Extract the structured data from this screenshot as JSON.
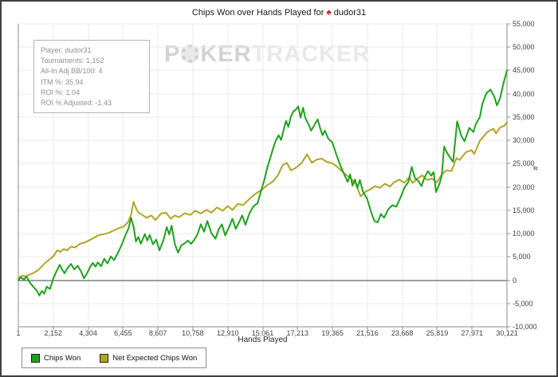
{
  "title": {
    "prefix": "Chips Won over Hands Played for",
    "player": "dudor31"
  },
  "watermark": {
    "part1": "P",
    "part2": "KER",
    "part3": "TRACKER"
  },
  "stats_box": {
    "lines": [
      "Player: dudor31",
      "Tournaments: 1,152",
      "All-In Adj BB/100: 4",
      "ITM %: 35.94",
      "ROI %: 1.04",
      "ROI % Adjusted: -1.43"
    ]
  },
  "axes": {
    "x_label": "Hands Played",
    "y_unit_label": "#"
  },
  "chart_data": {
    "type": "line",
    "title": "Chips Won over Hands Played for dudor31",
    "xlabel": "Hands Played",
    "ylabel": "#",
    "xlim": [
      1,
      30121
    ],
    "ylim": [
      -10000,
      55000
    ],
    "grid": true,
    "legend_position": "bottom-left",
    "x_ticks": [
      1,
      2152,
      4304,
      6455,
      8607,
      10758,
      12910,
      15061,
      17213,
      19365,
      21516,
      23668,
      25819,
      27971,
      30121
    ],
    "y_ticks": [
      -10000,
      -5000,
      0,
      5000,
      10000,
      15000,
      20000,
      25000,
      30000,
      35000,
      40000,
      45000,
      50000,
      55000
    ],
    "colors": {
      "grid": "#ebebeb",
      "axis": "#8c8c8c",
      "zero_line": "#3f3f3f"
    },
    "series": [
      {
        "name": "Chips Won",
        "color": "#1fa11f",
        "points": [
          [
            1,
            0
          ],
          [
            150,
            600
          ],
          [
            350,
            150
          ],
          [
            500,
            800
          ],
          [
            650,
            -200
          ],
          [
            800,
            -900
          ],
          [
            950,
            -1500
          ],
          [
            1150,
            -2300
          ],
          [
            1300,
            -3300
          ],
          [
            1450,
            -2300
          ],
          [
            1600,
            -2900
          ],
          [
            1750,
            -1400
          ],
          [
            1950,
            -1900
          ],
          [
            2150,
            300
          ],
          [
            2350,
            1900
          ],
          [
            2550,
            3300
          ],
          [
            2700,
            2300
          ],
          [
            2850,
            1500
          ],
          [
            3050,
            2700
          ],
          [
            3250,
            3500
          ],
          [
            3450,
            2300
          ],
          [
            3650,
            3100
          ],
          [
            3850,
            2000
          ],
          [
            4050,
            400
          ],
          [
            4250,
            1600
          ],
          [
            4450,
            3000
          ],
          [
            4600,
            3700
          ],
          [
            4750,
            2900
          ],
          [
            4900,
            3800
          ],
          [
            5100,
            3000
          ],
          [
            5300,
            4600
          ],
          [
            5500,
            3600
          ],
          [
            5700,
            5100
          ],
          [
            5900,
            4300
          ],
          [
            6100,
            5600
          ],
          [
            6350,
            7400
          ],
          [
            6600,
            9600
          ],
          [
            6800,
            11200
          ],
          [
            6950,
            13400
          ],
          [
            7100,
            11500
          ],
          [
            7250,
            8300
          ],
          [
            7400,
            9300
          ],
          [
            7550,
            7800
          ],
          [
            7800,
            9900
          ],
          [
            7950,
            8500
          ],
          [
            8100,
            9700
          ],
          [
            8300,
            7700
          ],
          [
            8500,
            8700
          ],
          [
            8700,
            6400
          ],
          [
            8950,
            8600
          ],
          [
            9150,
            11400
          ],
          [
            9300,
            9800
          ],
          [
            9450,
            11700
          ],
          [
            9650,
            7700
          ],
          [
            9850,
            5900
          ],
          [
            10050,
            7500
          ],
          [
            10250,
            7900
          ],
          [
            10450,
            8500
          ],
          [
            10650,
            7800
          ],
          [
            10850,
            8700
          ],
          [
            11050,
            9900
          ],
          [
            11250,
            12000
          ],
          [
            11450,
            10400
          ],
          [
            11650,
            12700
          ],
          [
            11900,
            10100
          ],
          [
            12150,
            8900
          ],
          [
            12350,
            10900
          ],
          [
            12550,
            12000
          ],
          [
            12750,
            9600
          ],
          [
            13000,
            11500
          ],
          [
            13200,
            13200
          ],
          [
            13400,
            11000
          ],
          [
            13600,
            12400
          ],
          [
            13800,
            13900
          ],
          [
            14000,
            11900
          ],
          [
            14250,
            14400
          ],
          [
            14500,
            15900
          ],
          [
            14750,
            16500
          ],
          [
            14950,
            19000
          ],
          [
            15150,
            21300
          ],
          [
            15350,
            24200
          ],
          [
            15550,
            26500
          ],
          [
            15750,
            28800
          ],
          [
            15900,
            30200
          ],
          [
            16050,
            31100
          ],
          [
            16200,
            30100
          ],
          [
            16350,
            32200
          ],
          [
            16500,
            34200
          ],
          [
            16650,
            32900
          ],
          [
            16800,
            35100
          ],
          [
            16950,
            36200
          ],
          [
            17100,
            36600
          ],
          [
            17250,
            37300
          ],
          [
            17400,
            34900
          ],
          [
            17550,
            37000
          ],
          [
            17700,
            34700
          ],
          [
            17900,
            33400
          ],
          [
            18050,
            32100
          ],
          [
            18250,
            33300
          ],
          [
            18450,
            34500
          ],
          [
            18600,
            32700
          ],
          [
            18750,
            31100
          ],
          [
            18900,
            32100
          ],
          [
            19100,
            30400
          ],
          [
            19350,
            29600
          ],
          [
            19600,
            27000
          ],
          [
            19850,
            24600
          ],
          [
            20100,
            22600
          ],
          [
            20300,
            21100
          ],
          [
            20450,
            22700
          ],
          [
            20600,
            20300
          ],
          [
            20750,
            21600
          ],
          [
            20900,
            19800
          ],
          [
            21050,
            21500
          ],
          [
            21250,
            18900
          ],
          [
            21500,
            17500
          ],
          [
            21750,
            14600
          ],
          [
            21950,
            12700
          ],
          [
            22150,
            12400
          ],
          [
            22350,
            14200
          ],
          [
            22550,
            13400
          ],
          [
            22800,
            15200
          ],
          [
            23050,
            16100
          ],
          [
            23300,
            15800
          ],
          [
            23550,
            17700
          ],
          [
            23800,
            19900
          ],
          [
            24050,
            21100
          ],
          [
            24250,
            24300
          ],
          [
            24450,
            21900
          ],
          [
            24650,
            21300
          ],
          [
            24850,
            20200
          ],
          [
            25050,
            22100
          ],
          [
            25250,
            23400
          ],
          [
            25450,
            22400
          ],
          [
            25600,
            23200
          ],
          [
            25750,
            18900
          ],
          [
            25950,
            20600
          ],
          [
            26100,
            22400
          ],
          [
            26250,
            28700
          ],
          [
            26400,
            27500
          ],
          [
            26600,
            26400
          ],
          [
            26800,
            25400
          ],
          [
            27050,
            34100
          ],
          [
            27300,
            31000
          ],
          [
            27500,
            29800
          ],
          [
            27800,
            32700
          ],
          [
            28050,
            31800
          ],
          [
            28200,
            33500
          ],
          [
            28450,
            35000
          ],
          [
            28600,
            37800
          ],
          [
            28850,
            40100
          ],
          [
            29100,
            40900
          ],
          [
            29350,
            39300
          ],
          [
            29500,
            37500
          ],
          [
            29700,
            39100
          ],
          [
            29900,
            42200
          ],
          [
            30121,
            45000
          ]
        ]
      },
      {
        "name": "Net Expected Chips Won",
        "color": "#b1a427",
        "points": [
          [
            1,
            500
          ],
          [
            250,
            1000
          ],
          [
            450,
            800
          ],
          [
            700,
            1200
          ],
          [
            950,
            1600
          ],
          [
            1200,
            2100
          ],
          [
            1400,
            2800
          ],
          [
            1650,
            3700
          ],
          [
            1900,
            4400
          ],
          [
            2150,
            5100
          ],
          [
            2400,
            6400
          ],
          [
            2600,
            6100
          ],
          [
            2800,
            6700
          ],
          [
            3000,
            6400
          ],
          [
            3250,
            7200
          ],
          [
            3500,
            7000
          ],
          [
            3800,
            7800
          ],
          [
            4100,
            8100
          ],
          [
            4400,
            8600
          ],
          [
            4700,
            9200
          ],
          [
            5000,
            9700
          ],
          [
            5300,
            9900
          ],
          [
            5600,
            10200
          ],
          [
            5900,
            10700
          ],
          [
            6200,
            11200
          ],
          [
            6500,
            11500
          ],
          [
            6750,
            12400
          ],
          [
            6950,
            14000
          ],
          [
            7100,
            16800
          ],
          [
            7250,
            15500
          ],
          [
            7400,
            14500
          ],
          [
            7650,
            14000
          ],
          [
            7900,
            13400
          ],
          [
            8200,
            13900
          ],
          [
            8450,
            12900
          ],
          [
            8800,
            14300
          ],
          [
            9100,
            14500
          ],
          [
            9400,
            13200
          ],
          [
            9650,
            13900
          ],
          [
            9900,
            13500
          ],
          [
            10250,
            14400
          ],
          [
            10600,
            14000
          ],
          [
            10900,
            14900
          ],
          [
            11250,
            14300
          ],
          [
            11600,
            15100
          ],
          [
            11900,
            14500
          ],
          [
            12250,
            15600
          ],
          [
            12600,
            14900
          ],
          [
            12900,
            15900
          ],
          [
            13200,
            15100
          ],
          [
            13550,
            16400
          ],
          [
            13850,
            16100
          ],
          [
            14200,
            17300
          ],
          [
            14600,
            18500
          ],
          [
            15000,
            19400
          ],
          [
            15350,
            20400
          ],
          [
            15700,
            21200
          ],
          [
            16000,
            22500
          ],
          [
            16300,
            24700
          ],
          [
            16550,
            25200
          ],
          [
            16800,
            23600
          ],
          [
            17100,
            24100
          ],
          [
            17450,
            25100
          ],
          [
            17800,
            27000
          ],
          [
            18100,
            25200
          ],
          [
            18400,
            25900
          ],
          [
            18700,
            26100
          ],
          [
            19000,
            25400
          ],
          [
            19350,
            25100
          ],
          [
            19700,
            24200
          ],
          [
            20100,
            22900
          ],
          [
            20500,
            21800
          ],
          [
            20800,
            20700
          ],
          [
            21100,
            18000
          ],
          [
            21400,
            19000
          ],
          [
            21700,
            19500
          ],
          [
            22000,
            20200
          ],
          [
            22300,
            19800
          ],
          [
            22600,
            20700
          ],
          [
            22900,
            20100
          ],
          [
            23200,
            21100
          ],
          [
            23500,
            21600
          ],
          [
            23800,
            20900
          ],
          [
            24100,
            22100
          ],
          [
            24300,
            20900
          ],
          [
            24600,
            21800
          ],
          [
            24900,
            22500
          ],
          [
            25200,
            21500
          ],
          [
            25500,
            21800
          ],
          [
            25800,
            21000
          ],
          [
            26100,
            22700
          ],
          [
            26400,
            23600
          ],
          [
            26700,
            23400
          ],
          [
            27000,
            26200
          ],
          [
            27200,
            25800
          ],
          [
            27600,
            27500
          ],
          [
            27950,
            27900
          ],
          [
            28100,
            27100
          ],
          [
            28450,
            29900
          ],
          [
            28900,
            31800
          ],
          [
            29280,
            32500
          ],
          [
            29450,
            31500
          ],
          [
            29700,
            32800
          ],
          [
            29950,
            33100
          ],
          [
            30121,
            33900
          ]
        ]
      }
    ]
  }
}
